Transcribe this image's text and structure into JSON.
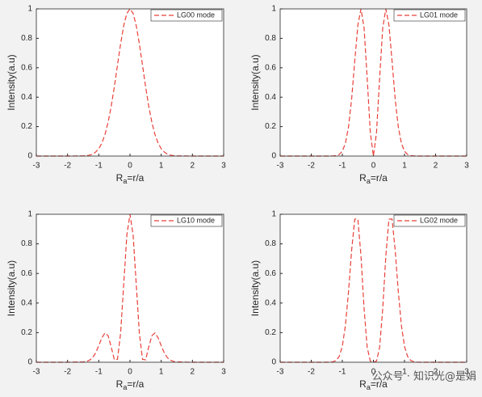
{
  "chart_data": [
    {
      "type": "line",
      "xlabel": [
        "R",
        "a",
        "=r/a"
      ],
      "ylabel": "Intensity(a.u)",
      "x": [
        -3,
        -2,
        -1.5,
        -1.4,
        -1.3,
        -1.2,
        -1.1,
        -1,
        -0.9,
        -0.8,
        -0.7,
        -0.6,
        -0.5,
        -0.4,
        -0.3,
        -0.2,
        -0.1,
        0,
        0.1,
        0.2,
        0.3,
        0.4,
        0.5,
        0.6,
        0.7,
        0.8,
        0.9,
        1,
        1.1,
        1.2,
        1.3,
        1.4,
        1.5,
        2,
        3
      ],
      "series": [
        {
          "name": "LG00 mode",
          "color": "#e8413a",
          "line_style": "dashed",
          "values": [
            0,
            0,
            0.001,
            0.003,
            0.006,
            0.013,
            0.027,
            0.05,
            0.088,
            0.147,
            0.23,
            0.34,
            0.472,
            0.619,
            0.763,
            0.887,
            0.97,
            1,
            0.97,
            0.887,
            0.763,
            0.619,
            0.472,
            0.34,
            0.23,
            0.147,
            0.088,
            0.05,
            0.027,
            0.013,
            0.006,
            0.003,
            0.001,
            0,
            0
          ]
        }
      ],
      "xlim": [
        -3,
        3
      ],
      "xticks": [
        -3,
        -2,
        -1,
        0,
        1,
        2,
        3
      ],
      "ylim": [
        0,
        1
      ],
      "yticks": [
        0,
        0.2,
        0.4,
        0.6,
        0.8,
        1
      ],
      "grid": false,
      "legend": "upper right"
    },
    {
      "type": "line",
      "xlabel": [
        "R",
        "a",
        "=r/a"
      ],
      "ylabel": "Intensity(a.u)",
      "x": [
        -3,
        -2,
        -1.5,
        -1.4,
        -1.3,
        -1.2,
        -1.1,
        -1,
        -0.9,
        -0.8,
        -0.7,
        -0.6,
        -0.5,
        -0.4,
        -0.3,
        -0.2,
        -0.1,
        0,
        0.1,
        0.2,
        0.3,
        0.4,
        0.5,
        0.6,
        0.7,
        0.8,
        0.9,
        1,
        1.1,
        1.2,
        1.3,
        1.4,
        1.5,
        2,
        3
      ],
      "series": [
        {
          "name": "LG01 mode",
          "color": "#e8413a",
          "line_style": "dashed",
          "values": [
            0,
            0,
            0,
            0,
            0.001,
            0.003,
            0.011,
            0.033,
            0.087,
            0.199,
            0.389,
            0.645,
            0.89,
            1,
            0.871,
            0.529,
            0.16,
            0,
            0.16,
            0.529,
            0.871,
            1,
            0.89,
            0.645,
            0.389,
            0.199,
            0.087,
            0.033,
            0.011,
            0.003,
            0.001,
            0,
            0,
            0,
            0
          ]
        }
      ],
      "xlim": [
        -3,
        3
      ],
      "xticks": [
        -3,
        -2,
        -1,
        0,
        1,
        2,
        3
      ],
      "ylim": [
        0,
        1
      ],
      "yticks": [
        0,
        0.2,
        0.4,
        0.6,
        0.8,
        1
      ],
      "grid": false,
      "legend": "upper right"
    },
    {
      "type": "line",
      "xlabel": [
        "R",
        "a",
        "=r/a"
      ],
      "ylabel": "Intensity(a.u)",
      "x": [
        -3,
        -2,
        -1.5,
        -1.4,
        -1.3,
        -1.2,
        -1.1,
        -1,
        -0.9,
        -0.8,
        -0.7,
        -0.6,
        -0.5,
        -0.4,
        -0.3,
        -0.2,
        -0.1,
        0,
        0.1,
        0.2,
        0.3,
        0.4,
        0.5,
        0.6,
        0.7,
        0.8,
        0.9,
        1,
        1.1,
        1.2,
        1.3,
        1.4,
        1.5,
        2,
        3
      ],
      "series": [
        {
          "name": "LG10 mode",
          "color": "#e8413a",
          "line_style": "dashed",
          "values": [
            0,
            0,
            0.002,
            0.005,
            0.013,
            0.03,
            0.063,
            0.112,
            0.165,
            0.198,
            0.179,
            0.102,
            0.016,
            0.02,
            0.198,
            0.529,
            0.86,
            1,
            0.86,
            0.529,
            0.198,
            0.02,
            0.016,
            0.102,
            0.179,
            0.198,
            0.165,
            0.112,
            0.063,
            0.03,
            0.013,
            0.005,
            0.002,
            0,
            0
          ]
        }
      ],
      "xlim": [
        -3,
        3
      ],
      "xticks": [
        -3,
        -2,
        -1,
        0,
        1,
        2,
        3
      ],
      "ylim": [
        0,
        1
      ],
      "yticks": [
        0,
        0.2,
        0.4,
        0.6,
        0.8,
        1
      ],
      "grid": false,
      "legend": "upper right"
    },
    {
      "type": "line",
      "xlabel": [
        "R",
        "a",
        "=r/a"
      ],
      "ylabel": "Intensity(a.u)",
      "x": [
        -3,
        -2,
        -1.5,
        -1.4,
        -1.3,
        -1.2,
        -1.1,
        -1,
        -0.9,
        -0.8,
        -0.7,
        -0.6,
        -0.5,
        -0.4,
        -0.3,
        -0.2,
        -0.1,
        0,
        0.1,
        0.2,
        0.3,
        0.4,
        0.5,
        0.6,
        0.7,
        0.8,
        0.9,
        1,
        1.1,
        1.2,
        1.3,
        1.4,
        1.5,
        2,
        3
      ],
      "series": [
        {
          "name": "LG02 mode",
          "color": "#e8413a",
          "line_style": "dashed",
          "values": [
            0,
            0,
            0,
            0.001,
            0.003,
            0.012,
            0.039,
            0.108,
            0.249,
            0.479,
            0.758,
            0.968,
            0.967,
            0.719,
            0.362,
            0.1,
            0.008,
            0,
            0.008,
            0.1,
            0.362,
            0.719,
            0.967,
            0.968,
            0.758,
            0.479,
            0.249,
            0.108,
            0.039,
            0.012,
            0.003,
            0.001,
            0,
            0,
            0
          ]
        }
      ],
      "xlim": [
        -3,
        3
      ],
      "xticks": [
        -3,
        -2,
        -1,
        0,
        1,
        2,
        3
      ],
      "ylim": [
        0,
        1
      ],
      "yticks": [
        0,
        0.2,
        0.4,
        0.6,
        0.8,
        1
      ],
      "grid": false,
      "legend": "upper right"
    }
  ],
  "watermark": "公众号 · 知识光@是娟"
}
